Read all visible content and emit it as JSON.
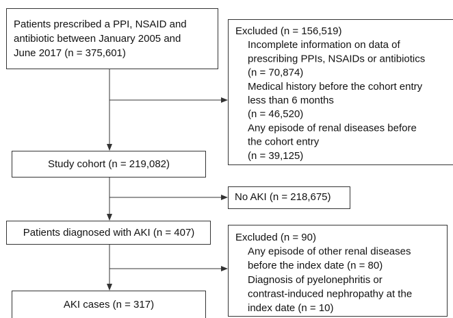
{
  "nodes": [
    {
      "lines": [
        "Patients prescribed a PPI, NSAID and",
        "antibiotic between January 2005 and",
        "June 2017 (n = 375,601)"
      ]
    },
    {
      "heading": "Excluded (n = 156,519)",
      "items": [
        {
          "lines": [
            "Incomplete information on data of",
            "prescribing PPIs, NSAIDs or antibiotics",
            "(n = 70,874)"
          ]
        },
        {
          "lines": [
            "Medical history before the cohort entry",
            "less than 6 months",
            "(n = 46,520)"
          ]
        },
        {
          "lines": [
            "Any episode of renal diseases before",
            "the cohort entry",
            "(n = 39,125)"
          ]
        }
      ]
    },
    {
      "lines": [
        "Study cohort (n = 219,082)"
      ]
    },
    {
      "lines": [
        "No AKI (n = 218,675)"
      ]
    },
    {
      "lines": [
        "Patients diagnosed with AKI (n = 407)"
      ]
    },
    {
      "heading": "Excluded (n = 90)",
      "items": [
        {
          "lines": [
            "Any episode of other renal diseases",
            "before the index date (n = 80)"
          ]
        },
        {
          "lines": [
            "Diagnosis of pyelonephritis or",
            "contrast-induced nephropathy at the",
            "index date (n = 10)"
          ]
        }
      ]
    },
    {
      "lines": [
        "AKI cases (n = 317)"
      ]
    }
  ]
}
